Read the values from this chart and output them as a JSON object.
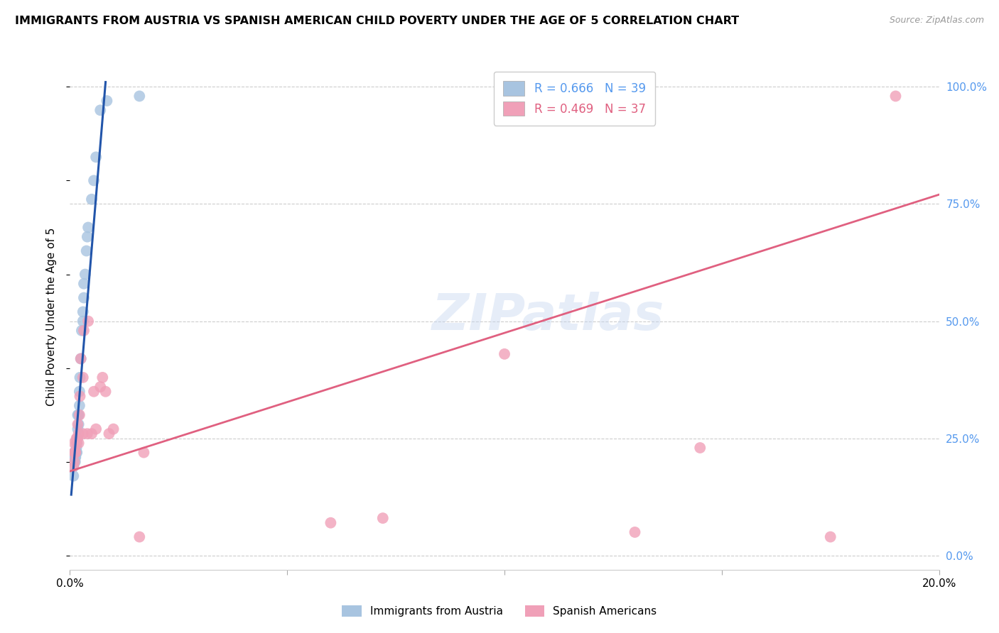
{
  "title": "IMMIGRANTS FROM AUSTRIA VS SPANISH AMERICAN CHILD POVERTY UNDER THE AGE OF 5 CORRELATION CHART",
  "source": "Source: ZipAtlas.com",
  "ylabel": "Child Poverty Under the Age of 5",
  "series1_color": "#a8c4e0",
  "series2_color": "#f0a0b8",
  "line1_color": "#2255aa",
  "line2_color": "#e06080",
  "xmin": 0.0,
  "xmax": 0.2,
  "ymin": -0.03,
  "ymax": 1.05,
  "blue_x": [
    0.0008,
    0.0008,
    0.0009,
    0.001,
    0.001,
    0.001,
    0.0012,
    0.0012,
    0.0012,
    0.0013,
    0.0013,
    0.0015,
    0.0015,
    0.0016,
    0.0016,
    0.0017,
    0.0018,
    0.0018,
    0.002,
    0.002,
    0.0022,
    0.0022,
    0.0023,
    0.0025,
    0.0027,
    0.003,
    0.003,
    0.0032,
    0.0032,
    0.0035,
    0.0038,
    0.004,
    0.0042,
    0.005,
    0.0055,
    0.006,
    0.007,
    0.0085,
    0.016
  ],
  "blue_y": [
    0.17,
    0.19,
    0.2,
    0.2,
    0.21,
    0.22,
    0.2,
    0.21,
    0.22,
    0.21,
    0.22,
    0.22,
    0.23,
    0.22,
    0.24,
    0.25,
    0.27,
    0.3,
    0.28,
    0.3,
    0.32,
    0.35,
    0.38,
    0.42,
    0.48,
    0.5,
    0.52,
    0.55,
    0.58,
    0.6,
    0.65,
    0.68,
    0.7,
    0.76,
    0.8,
    0.85,
    0.95,
    0.97,
    0.98
  ],
  "pink_x": [
    0.0008,
    0.001,
    0.001,
    0.001,
    0.0012,
    0.0013,
    0.0015,
    0.0015,
    0.0017,
    0.0018,
    0.002,
    0.002,
    0.0022,
    0.0023,
    0.0025,
    0.003,
    0.003,
    0.0032,
    0.004,
    0.0042,
    0.005,
    0.0055,
    0.006,
    0.007,
    0.0075,
    0.0082,
    0.009,
    0.01,
    0.016,
    0.017,
    0.06,
    0.072,
    0.1,
    0.13,
    0.145,
    0.175,
    0.19
  ],
  "pink_y": [
    0.19,
    0.2,
    0.22,
    0.24,
    0.22,
    0.22,
    0.24,
    0.25,
    0.25,
    0.28,
    0.24,
    0.26,
    0.3,
    0.34,
    0.42,
    0.26,
    0.38,
    0.48,
    0.26,
    0.5,
    0.26,
    0.35,
    0.27,
    0.36,
    0.38,
    0.35,
    0.26,
    0.27,
    0.04,
    0.22,
    0.07,
    0.08,
    0.43,
    0.05,
    0.23,
    0.04,
    0.98
  ],
  "blue_line_x": [
    0.0003,
    0.0082
  ],
  "blue_line_y": [
    0.13,
    1.01
  ],
  "pink_line_x": [
    0.0,
    0.2
  ],
  "pink_line_y": [
    0.18,
    0.77
  ],
  "ytick_positions": [
    0.0,
    0.25,
    0.5,
    0.75,
    1.0
  ],
  "ytick_labels_right": [
    "0.0%",
    "25.0%",
    "50.0%",
    "75.0%",
    "100.0%"
  ],
  "xtick_positions": [
    0.0,
    0.05,
    0.1,
    0.15,
    0.2
  ],
  "xtick_labels": [
    "0.0%",
    "",
    "",
    "",
    "20.0%"
  ]
}
